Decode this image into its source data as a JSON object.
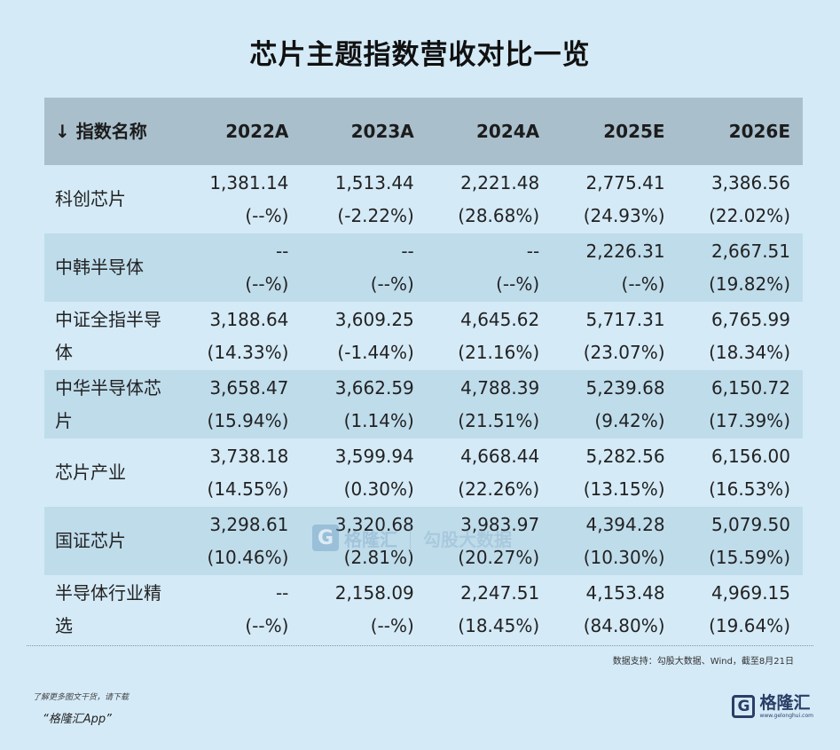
{
  "title": "芯片主题指数营收对比一览",
  "table": {
    "name_header": "↓ 指数名称",
    "year_headers": [
      "2022A",
      "2023A",
      "2024A",
      "2025E",
      "2026E"
    ],
    "rows": [
      {
        "name": "科创芯片",
        "cells": [
          {
            "v": "1,381.14",
            "p": "(--%)"
          },
          {
            "v": "1,513.44",
            "p": "(-2.22%)"
          },
          {
            "v": "2,221.48",
            "p": "(28.68%)"
          },
          {
            "v": "2,775.41",
            "p": "(24.93%)"
          },
          {
            "v": "3,386.56",
            "p": "(22.02%)"
          }
        ]
      },
      {
        "name": "中韩半导体",
        "cells": [
          {
            "v": "--",
            "p": "(--%)"
          },
          {
            "v": "--",
            "p": "(--%)"
          },
          {
            "v": "--",
            "p": "(--%)"
          },
          {
            "v": "2,226.31",
            "p": "(--%)"
          },
          {
            "v": "2,667.51",
            "p": "(19.82%)"
          }
        ]
      },
      {
        "name": "中证全指半导体",
        "cells": [
          {
            "v": "3,188.64",
            "p": "(14.33%)"
          },
          {
            "v": "3,609.25",
            "p": "(-1.44%)"
          },
          {
            "v": "4,645.62",
            "p": "(21.16%)"
          },
          {
            "v": "5,717.31",
            "p": "(23.07%)"
          },
          {
            "v": "6,765.99",
            "p": "(18.34%)"
          }
        ]
      },
      {
        "name": "中华半导体芯片",
        "cells": [
          {
            "v": "3,658.47",
            "p": "(15.94%)"
          },
          {
            "v": "3,662.59",
            "p": "(1.14%)"
          },
          {
            "v": "4,788.39",
            "p": "(21.51%)"
          },
          {
            "v": "5,239.68",
            "p": "(9.42%)"
          },
          {
            "v": "6,150.72",
            "p": "(17.39%)"
          }
        ]
      },
      {
        "name": "芯片产业",
        "cells": [
          {
            "v": "3,738.18",
            "p": "(14.55%)"
          },
          {
            "v": "3,599.94",
            "p": "(0.30%)"
          },
          {
            "v": "4,668.44",
            "p": "(22.26%)"
          },
          {
            "v": "5,282.56",
            "p": "(13.15%)"
          },
          {
            "v": "6,156.00",
            "p": "(16.53%)"
          }
        ]
      },
      {
        "name": "国证芯片",
        "cells": [
          {
            "v": "3,298.61",
            "p": "(10.46%)"
          },
          {
            "v": "3,320.68",
            "p": "(2.81%)"
          },
          {
            "v": "3,983.97",
            "p": "(20.27%)"
          },
          {
            "v": "4,394.28",
            "p": "(10.30%)"
          },
          {
            "v": "5,079.50",
            "p": "(15.59%)"
          }
        ]
      },
      {
        "name": "半导体行业精选",
        "cells": [
          {
            "v": "--",
            "p": "(--%)"
          },
          {
            "v": "2,158.09",
            "p": "(--%)"
          },
          {
            "v": "2,247.51",
            "p": "(18.45%)"
          },
          {
            "v": "4,153.48",
            "p": "(84.80%)"
          },
          {
            "v": "4,969.15",
            "p": "(19.64%)"
          }
        ]
      }
    ]
  },
  "source_note": "数据支持：勾股大数据、Wind，截至8月21日",
  "watermark": {
    "logo_letter": "G",
    "brand": "格隆汇",
    "app": "勾股大数据"
  },
  "footer": {
    "hint": "了解更多图文干货，请下载",
    "app_name": "“格隆汇App”",
    "logo_letter": "G",
    "logo_text": "格隆汇",
    "logo_url": "www.gelonghui.com"
  },
  "colors": {
    "background": "#d4eaf7",
    "header_row": "#a9bfcc",
    "alt_row": "#bfdceb"
  }
}
